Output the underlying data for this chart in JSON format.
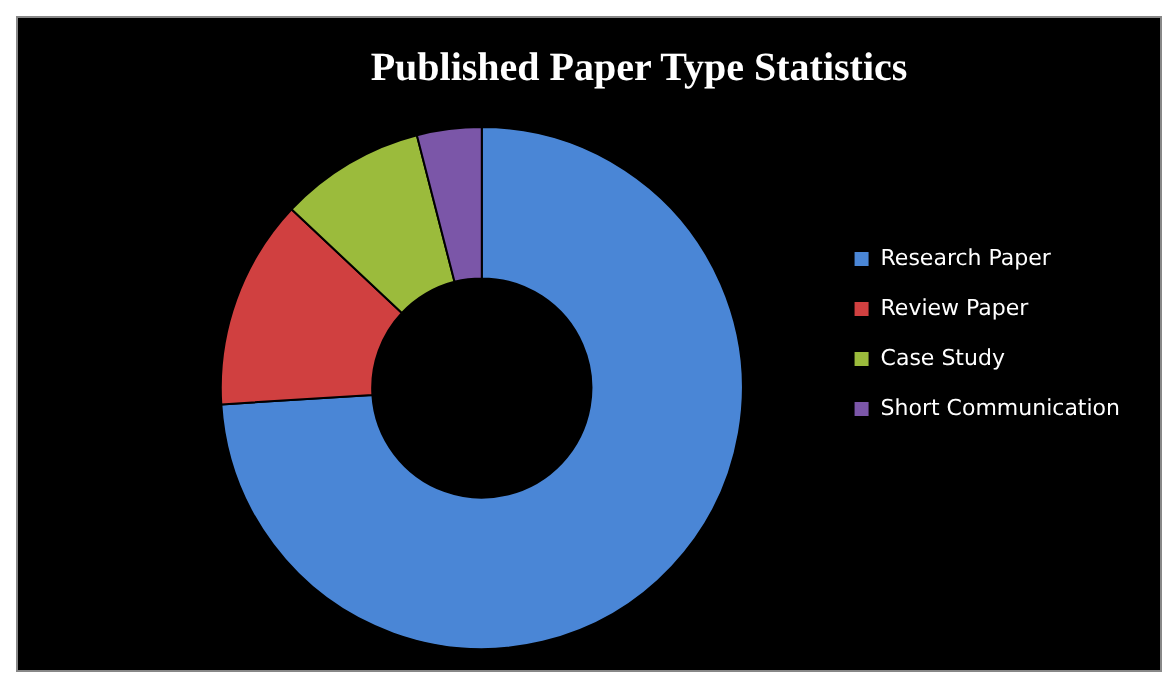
{
  "chart_data": {
    "type": "donut",
    "title": "Published Paper Type Statistics",
    "categories": [
      "Research Paper",
      "Review Paper",
      "Case Study",
      "Short Communication"
    ],
    "values": [
      74,
      13,
      9,
      4
    ],
    "colors": [
      "#4a86d6",
      "#d04040",
      "#9bbb3c",
      "#7b56a8"
    ],
    "legend": "right"
  }
}
